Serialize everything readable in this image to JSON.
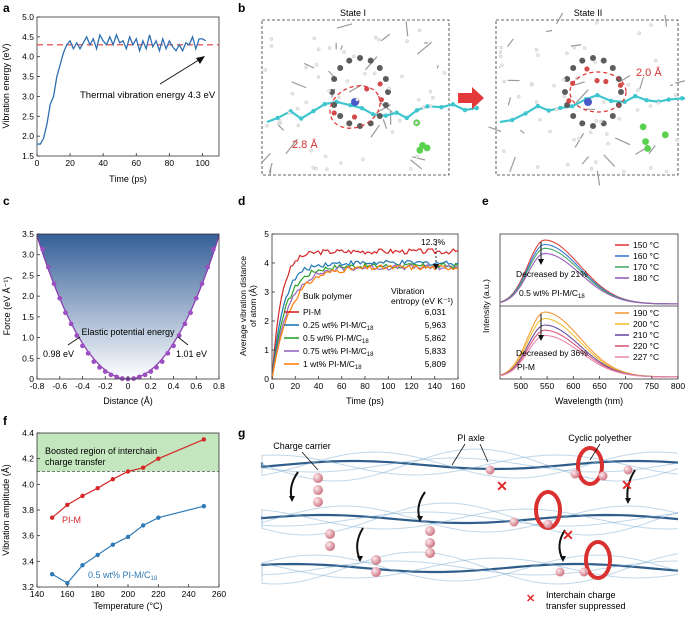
{
  "panels": {
    "a": {
      "letter": "a",
      "annotation": "Thermal vibration energy 4.3 eV",
      "chart_data": {
        "type": "line",
        "xlabel": "Time (ps)",
        "ylabel": "Vibration energy (eV)",
        "xlim": [
          0,
          110
        ],
        "ylim": [
          1.5,
          5.0
        ],
        "xticks": [
          "0",
          "20",
          "40",
          "60",
          "80",
          "100"
        ],
        "yticks": [
          "1.5",
          "2.0",
          "2.5",
          "3.0",
          "3.5",
          "4.0",
          "4.5",
          "5.0"
        ],
        "reference_line": 4.3,
        "x": [
          0,
          2,
          4,
          6,
          8,
          10,
          12,
          14,
          16,
          18,
          20,
          22,
          24,
          26,
          28,
          30,
          32,
          34,
          36,
          38,
          40,
          42,
          44,
          46,
          48,
          50,
          52,
          54,
          56,
          58,
          60,
          62,
          64,
          66,
          68,
          70,
          72,
          74,
          76,
          78,
          80,
          82,
          84,
          86,
          88,
          90,
          92,
          94,
          96,
          98,
          100,
          102
        ],
        "y": [
          1.8,
          1.8,
          1.95,
          2.3,
          2.8,
          3.0,
          3.5,
          3.8,
          4.1,
          4.3,
          4.4,
          4.2,
          4.35,
          4.2,
          4.35,
          4.5,
          4.3,
          4.45,
          4.2,
          4.55,
          4.4,
          4.3,
          4.5,
          4.3,
          4.55,
          4.35,
          4.4,
          4.2,
          4.5,
          4.3,
          4.45,
          4.15,
          4.4,
          4.2,
          4.55,
          4.25,
          4.4,
          4.15,
          4.45,
          4.2,
          4.4,
          4.25,
          4.15,
          4.3,
          4.15,
          4.35,
          4.3,
          4.5,
          4.2,
          4.45,
          4.45,
          4.4
        ]
      }
    },
    "b": {
      "letter": "b",
      "state1_title": "State I",
      "state2_title": "State II",
      "state1_distance": "2.8 Å",
      "state2_distance": "2.0 Å"
    },
    "c": {
      "letter": "c",
      "label_main": "Elastic potential energy",
      "label_left": "0.98 eV",
      "label_right": "1.01 eV",
      "chart_data": {
        "type": "scatter",
        "xlabel": "Distance (Å)",
        "ylabel": "Force (eV Å⁻¹)",
        "xlim": [
          -0.8,
          0.8
        ],
        "ylim": [
          0,
          3.5
        ],
        "xticks": [
          "-0.8",
          "-0.6",
          "-0.4",
          "-0.2",
          "0",
          "0.2",
          "0.4",
          "0.6",
          "0.8"
        ],
        "yticks": [
          "0",
          "0.5",
          "1.0",
          "1.5",
          "2.0",
          "2.5",
          "3.0",
          "3.5"
        ],
        "x": [
          -0.75,
          -0.7,
          -0.65,
          -0.6,
          -0.55,
          -0.5,
          -0.45,
          -0.4,
          -0.35,
          -0.3,
          -0.25,
          -0.2,
          -0.15,
          -0.1,
          -0.05,
          0,
          0.05,
          0.1,
          0.15,
          0.2,
          0.25,
          0.3,
          0.35,
          0.4,
          0.45,
          0.5,
          0.55,
          0.6,
          0.65,
          0.7,
          0.75
        ],
        "y": [
          3.13,
          2.7,
          2.3,
          1.95,
          1.6,
          1.33,
          1.05,
          0.8,
          0.62,
          0.42,
          0.28,
          0.18,
          0.1,
          0.05,
          0.01,
          0,
          0.01,
          0.05,
          0.1,
          0.18,
          0.28,
          0.42,
          0.62,
          0.8,
          1.05,
          1.33,
          1.6,
          1.95,
          2.3,
          2.7,
          3.13
        ]
      }
    },
    "d": {
      "letter": "d",
      "legend_title": "Bulk polymer",
      "entropy_title_1": "Vibration",
      "entropy_title_2": "entropy (eV K⁻¹)",
      "pct_label": "12.3%",
      "chart_data": {
        "type": "line",
        "xlabel": "Time (ps)",
        "ylabel_1": "Average vibration distance",
        "ylabel_2": "of atom (Å)",
        "xlim": [
          0,
          160
        ],
        "ylim": [
          0,
          5
        ],
        "xticks": [
          "0",
          "20",
          "40",
          "60",
          "80",
          "100",
          "120",
          "140",
          "160"
        ],
        "yticks": [
          "0",
          "1",
          "2",
          "3",
          "4",
          "5"
        ],
        "series": [
          {
            "name": "PI-M",
            "entropy": "6,031",
            "color": "#d62728",
            "final": 4.4
          },
          {
            "name": "0.25 wt% PI-M/C18",
            "entropy": "5,963",
            "color": "#1f77b4",
            "final": 4.0
          },
          {
            "name": "0.5 wt% PI-M/C18",
            "entropy": "5,862",
            "color": "#2ca02c",
            "final": 3.9
          },
          {
            "name": "0.75 wt% PI-M/C18",
            "entropy": "5,833",
            "color": "#9467bd",
            "final": 3.85
          },
          {
            "name": "1 wt% PI-M/C18",
            "entropy": "5,809",
            "color": "#ff7f0e",
            "final": 3.85
          }
        ]
      }
    },
    "e": {
      "letter": "e",
      "top_note": "Decreased by 21%",
      "top_sample": "0.5 wt% PI-M/C18",
      "bottom_note": "Decreased by 36%",
      "bottom_sample": "PI-M",
      "chart_data": {
        "type": "line",
        "xlabel": "Wavelength (nm)",
        "ylabel": "Intensity (a.u.)",
        "xlim": [
          460,
          800
        ],
        "xticks": [
          "500",
          "550",
          "600",
          "650",
          "700",
          "750",
          "800"
        ],
        "top_series": [
          {
            "name": "150 °C",
            "color": "#e0413a",
            "peak": 1.0
          },
          {
            "name": "160 °C",
            "color": "#3a7bd5",
            "peak": 0.93
          },
          {
            "name": "170 °C",
            "color": "#48a868",
            "peak": 0.87
          },
          {
            "name": "180 °C",
            "color": "#9b5fb8",
            "peak": 0.79
          }
        ],
        "bottom_series": [
          {
            "name": "190 °C",
            "color": "#f29b38",
            "peak": 1.0
          },
          {
            "name": "200 °C",
            "color": "#f2c230",
            "peak": 0.9
          },
          {
            "name": "210 °C",
            "color": "#6b4fa0",
            "peak": 0.8
          },
          {
            "name": "220 °C",
            "color": "#d9587a",
            "peak": 0.72
          },
          {
            "name": "227 °C",
            "color": "#e68ab0",
            "peak": 0.64
          }
        ]
      }
    },
    "f": {
      "letter": "f",
      "region_label_1": "Boosted region of interchain",
      "region_label_2": "charge transfer",
      "chart_data": {
        "type": "line",
        "xlabel": "Temperature (°C)",
        "ylabel": "Vibration amplitude (Å)",
        "xlim": [
          140,
          260
        ],
        "ylim": [
          3.2,
          4.4
        ],
        "xticks": [
          "140",
          "160",
          "180",
          "200",
          "220",
          "240",
          "260"
        ],
        "yticks": [
          "3.2",
          "3.4",
          "3.6",
          "3.8",
          "4.0",
          "4.2",
          "4.4"
        ],
        "region_low": 4.1,
        "series": [
          {
            "name": "PI-M",
            "color": "#d62728",
            "x": [
              150,
              160,
              170,
              180,
              190,
              200,
              210,
              220,
              250
            ],
            "y": [
              3.74,
              3.84,
              3.91,
              3.97,
              4.04,
              4.1,
              4.13,
              4.2,
              4.35
            ]
          },
          {
            "name": "0.5 wt% PI-M/C18",
            "color": "#2f7ab6",
            "x": [
              150,
              160,
              170,
              180,
              190,
              200,
              210,
              220,
              250
            ],
            "y": [
              3.3,
              3.23,
              3.37,
              3.45,
              3.53,
              3.59,
              3.68,
              3.74,
              3.83
            ]
          }
        ]
      }
    },
    "g": {
      "letter": "g",
      "charge_carrier": "Charge carrier",
      "pi_axle": "PI axle",
      "cyclic_polyether": "Cyclic polyether",
      "suppressed_1": "Interchain charge",
      "suppressed_2": "transfer suppressed"
    }
  }
}
